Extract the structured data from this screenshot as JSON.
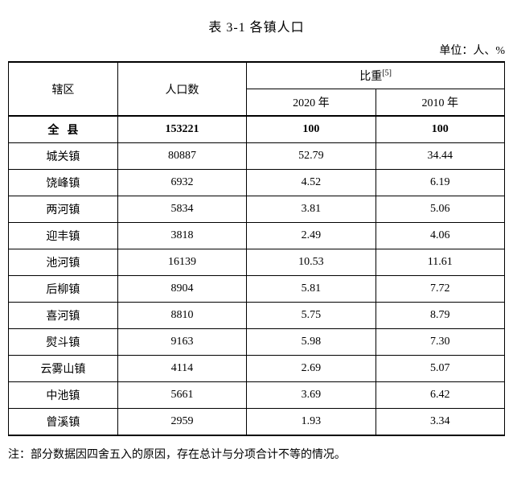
{
  "title": "表 3-1 各镇人口",
  "unit_label": "单位：人、%",
  "headers": {
    "region": "辖区",
    "population": "人口数",
    "ratio": "比重",
    "ratio_sup": "[5]",
    "year_2020": "2020 年",
    "year_2010": "2010 年"
  },
  "total_row": {
    "region": "全县",
    "population": "153221",
    "ratio_2020": "100",
    "ratio_2010": "100"
  },
  "rows": [
    {
      "region": "城关镇",
      "population": "80887",
      "ratio_2020": "52.79",
      "ratio_2010": "34.44"
    },
    {
      "region": "饶峰镇",
      "population": "6932",
      "ratio_2020": "4.52",
      "ratio_2010": "6.19"
    },
    {
      "region": "两河镇",
      "population": "5834",
      "ratio_2020": "3.81",
      "ratio_2010": "5.06"
    },
    {
      "region": "迎丰镇",
      "population": "3818",
      "ratio_2020": "2.49",
      "ratio_2010": "4.06"
    },
    {
      "region": "池河镇",
      "population": "16139",
      "ratio_2020": "10.53",
      "ratio_2010": "11.61"
    },
    {
      "region": "后柳镇",
      "population": "8904",
      "ratio_2020": "5.81",
      "ratio_2010": "7.72"
    },
    {
      "region": "喜河镇",
      "population": "8810",
      "ratio_2020": "5.75",
      "ratio_2010": "8.79"
    },
    {
      "region": "熨斗镇",
      "population": "9163",
      "ratio_2020": "5.98",
      "ratio_2010": "7.30"
    },
    {
      "region": "云雾山镇",
      "population": "4114",
      "ratio_2020": "2.69",
      "ratio_2010": "5.07"
    },
    {
      "region": "中池镇",
      "population": "5661",
      "ratio_2020": "3.69",
      "ratio_2010": "6.42"
    },
    {
      "region": "曾溪镇",
      "population": "2959",
      "ratio_2020": "1.93",
      "ratio_2010": "3.34"
    }
  ],
  "note": "注：部分数据因四舍五入的原因，存在总计与分项合计不等的情况。"
}
